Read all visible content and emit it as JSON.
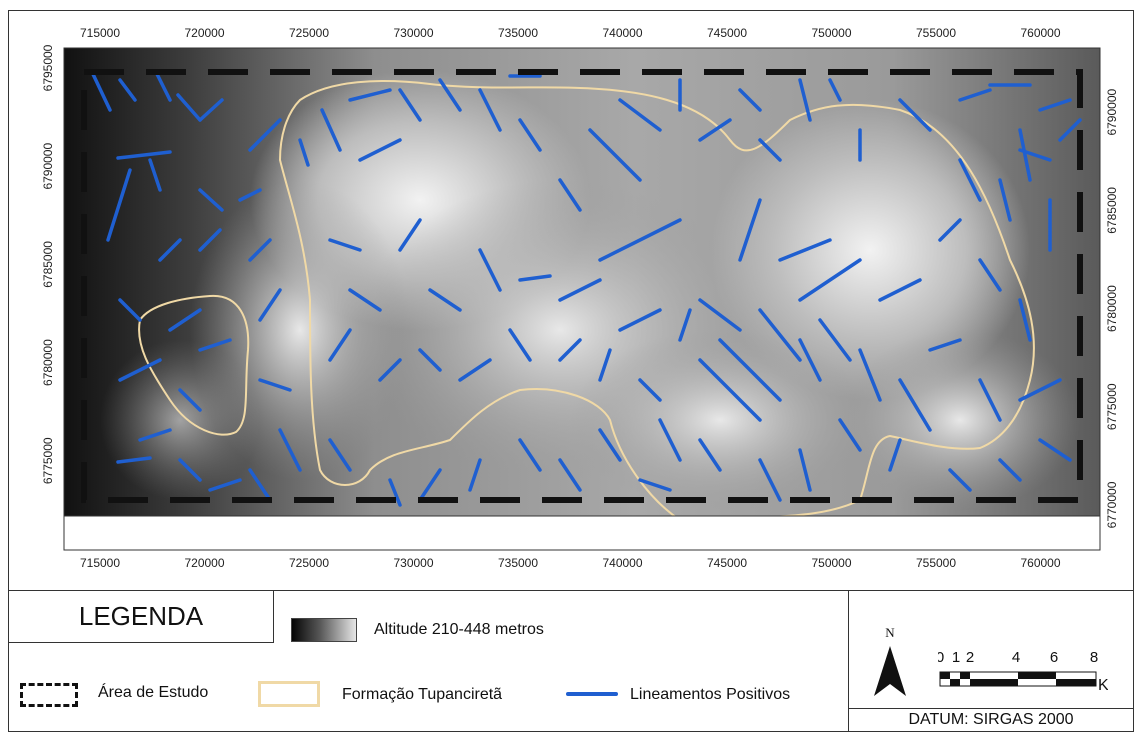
{
  "map": {
    "x_ticks": [
      "715000",
      "720000",
      "725000",
      "730000",
      "735000",
      "740000",
      "745000",
      "750000",
      "755000",
      "760000"
    ],
    "y_ticks": [
      "6795000",
      "6790000",
      "6785000",
      "6780000",
      "6775000",
      "6770000"
    ],
    "colors": {
      "lineaments": "#1f5fd0",
      "formation": "#f0d9a6",
      "study_area": "#111111"
    }
  },
  "legend": {
    "title": "LEGENDA",
    "altitude_label": "Altitude 210-448 metros",
    "study_area_label": "Área de Estudo",
    "formation_label": "Formação Tupanciretã",
    "lineaments_label": "Lineamentos Positivos"
  },
  "north": {
    "label": "N"
  },
  "scale": {
    "labels": [
      "0",
      "1",
      "2",
      "4",
      "6",
      "8"
    ],
    "unit": "Km"
  },
  "datum": "DATUM: SIRGAS 2000"
}
